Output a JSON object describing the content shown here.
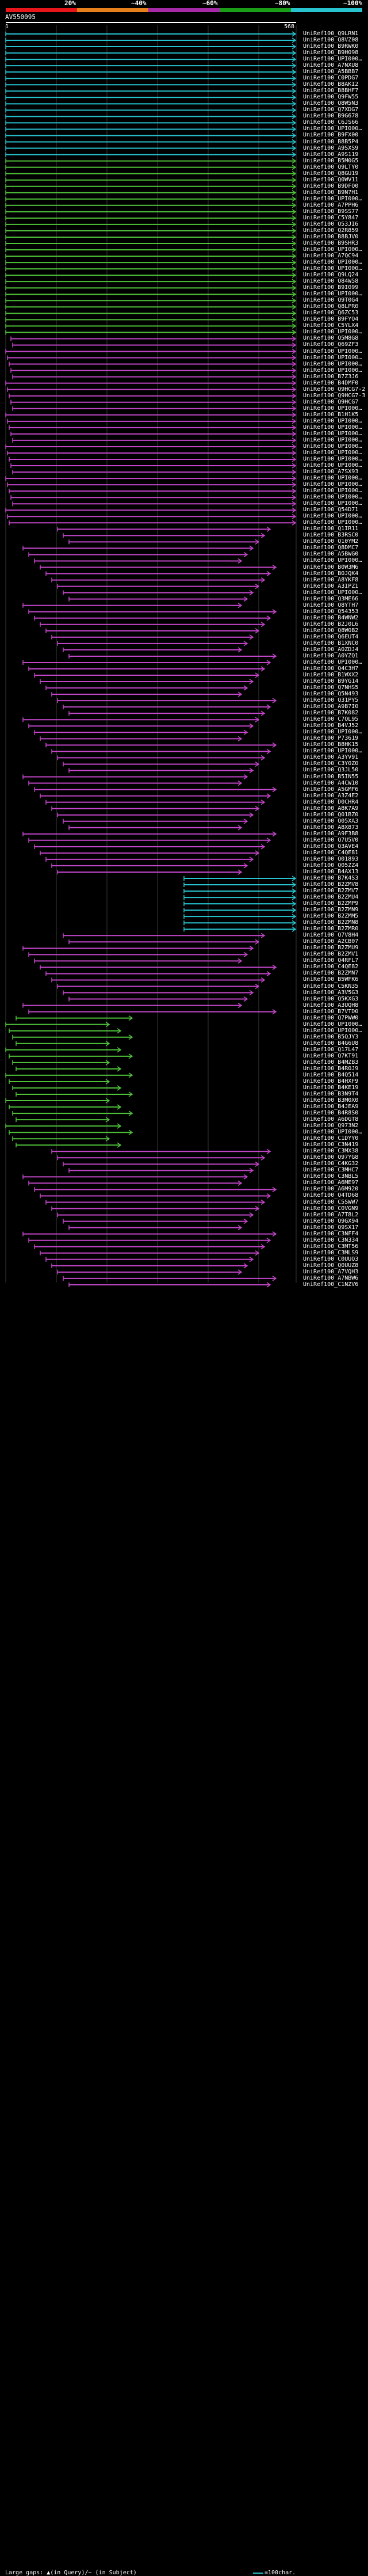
{
  "legend": {
    "labels": [
      "20%",
      "~40%",
      "~60%",
      "~80%",
      "~100%"
    ],
    "colors": [
      "#e8151b",
      "#e6801a",
      "#a629a8",
      "#1a9e18",
      "#27c4d0"
    ]
  },
  "query": {
    "title": "AV550095",
    "start": "1",
    "end": "568"
  },
  "colors": {
    "cyan": "#27c4d0",
    "green": "#4fc23a",
    "magenta": "#c346c9",
    "grid": "#3a3a3a"
  },
  "hits": [
    "UniRef100_Q9LRN1",
    "UniRef100_Q8VZ08",
    "UniRef100_B9RWK0",
    "UniRef100_B9H098",
    "UniRef100_UPI000…",
    "UniRef100_A7NXU8",
    "UniRef100_A5BBB7",
    "UniRef100_C0PDG7",
    "UniRef100_B8AKI2",
    "UniRef100_B8BHF7",
    "UniRef100_Q9FW55",
    "UniRef100_Q8W5N3",
    "UniRef100_Q7XDG7",
    "UniRef100_B9G678",
    "UniRef100_C6JS66",
    "UniRef100_UPI000…",
    "UniRef100_B9FX00",
    "UniRef100_B8B5P4",
    "UniRef100_A9SXS9",
    "UniRef100_A9S119",
    "UniRef100_B5M0G5",
    "UniRef100_Q9LTY0",
    "UniRef100_Q8GU19",
    "UniRef100_Q0WV11",
    "UniRef100_B9DFQ0",
    "UniRef100_B9N7H1",
    "UniRef100_UPI000…",
    "UniRef100_A7PPH6",
    "UniRef100_B9SS77",
    "UniRef100_C5Y847",
    "UniRef100_Q53JI6",
    "UniRef100_Q2R859",
    "UniRef100_B8BJV0",
    "UniRef100_B9SHR3",
    "UniRef100_UPI000…",
    "UniRef100_A7QC94",
    "UniRef100_UPI000…",
    "UniRef100_UPI000…",
    "UniRef100_Q9LQ24",
    "UniRef100_Q84W58",
    "UniRef100_B9I099",
    "UniRef100_UPI000…",
    "UniRef100_Q9T0G4",
    "UniRef100_Q8LPR0",
    "UniRef100_Q6ZC53",
    "UniRef100_B9FYQ4",
    "UniRef100_C5YLX4",
    "UniRef100_UPI000…",
    "UniRef100_Q5M8G8",
    "UniRef100_Q69ZF3",
    "UniRef100_UPI000…",
    "UniRef100_UPI000…",
    "UniRef100_UPI000…",
    "UniRef100_UPI000…",
    "UniRef100_B7Z3J6",
    "UniRef100_B4DMF0",
    "UniRef100_Q9HCG7-2",
    "UniRef100_Q9HCG7-3",
    "UniRef100_Q9HCG7",
    "UniRef100_UPI000…",
    "UniRef100_B1H1K5",
    "UniRef100_UPI000…",
    "UniRef100_UPI000…",
    "UniRef100_UPI000…",
    "UniRef100_UPI000…",
    "UniRef100_UPI000…",
    "UniRef100_UPI000…",
    "UniRef100_UPI000…",
    "UniRef100_UPI000…",
    "UniRef100_A7SX93",
    "UniRef100_UPI000…",
    "UniRef100_UPI000…",
    "UniRef100_UPI000…",
    "UniRef100_UPI000…",
    "UniRef100_UPI000…",
    "UniRef100_Q54D71",
    "UniRef100_UPI000…",
    "UniRef100_UPI000…",
    "UniRef100_Q1IR11",
    "UniRef100_B3RSC0",
    "UniRef100_Q10YM2",
    "UniRef100_Q8DMC7",
    "UniRef100_A5BWG0",
    "UniRef100_UPI000…",
    "UniRef100_B0W3M6",
    "UniRef100_B0JQK4",
    "UniRef100_A8YKF8",
    "UniRef100_A3IPZ1",
    "UniRef100_UPI000…",
    "UniRef100_Q3ME66",
    "UniRef100_Q8YTH7",
    "UniRef100_Q54353",
    "UniRef100_B4WNW2",
    "UniRef100_B2J0L6",
    "UniRef100_Q8W0B2",
    "UniRef100_Q6EUT4",
    "UniRef100_B1XNC0",
    "UniRef100_A0ZDJ4",
    "UniRef100_A0YZQ1",
    "UniRef100_UPI000…",
    "UniRef100_Q4C3H7",
    "UniRef100_B1WXX2",
    "UniRef100_B9YG14",
    "UniRef100_Q7NHS5",
    "UniRef100_Q5N493",
    "UniRef100_Q31PY5",
    "UniRef100_A9B7I0",
    "UniRef100_B7K082",
    "UniRef100_C7QL95",
    "UniRef100_B4VJ52",
    "UniRef100_UPI000…",
    "UniRef100_P73619",
    "UniRef100_B8HK15",
    "UniRef100_UPI000…",
    "UniRef100_A3YV91",
    "UniRef100_C3Y0Z0",
    "UniRef100_Q3JL50",
    "UniRef100_B5IN55",
    "UniRef100_A4CW10",
    "UniRef100_A5GMF6",
    "UniRef100_A3Z4E2",
    "UniRef100_D0CHR4",
    "UniRef100_A8K7A9",
    "UniRef100_Q01BZ0",
    "UniRef100_Q05XA3",
    "UniRef100_A8X873",
    "UniRef100_A9F3B8",
    "UniRef100_Q7U5V0",
    "UniRef100_Q3AVE4",
    "UniRef100_C4QE81",
    "UniRef100_Q01893",
    "UniRef100_Q05ZZ4",
    "UniRef100_B4AX13",
    "UniRef100_B7K4S3",
    "UniRef100_B2ZMV8",
    "UniRef100_B2ZMV7",
    "UniRef100_B2ZMU4",
    "UniRef100_B2ZMP9",
    "UniRef100_B2ZMN9",
    "UniRef100_B2ZMM5",
    "UniRef100_B2ZMN8",
    "UniRef100_B2ZMR0",
    "UniRef100_Q7V8H4",
    "UniRef100_A2CB07",
    "UniRef100_B2ZMU9",
    "UniRef100_B2ZMV1",
    "UniRef100_Q4RFL7",
    "UniRef100_C4QE82",
    "UniRef100_B2ZMN7",
    "UniRef100_B5WFK6",
    "UniRef100_C5KN35",
    "UniRef100_A3V5G3",
    "UniRef100_Q5KXG3",
    "UniRef100_A3UQH8",
    "UniRef100_B7VTD0",
    "UniRef100_Q7PWW0",
    "UniRef100_UPI000…",
    "UniRef100_UPI000…",
    "UniRef100_B5QJY3",
    "UniRef100_B4G6U8",
    "UniRef100_Q17L47",
    "UniRef100_Q7KT91",
    "UniRef100_B4MZB3",
    "UniRef100_B4R0J9",
    "UniRef100_B4Q514",
    "UniRef100_B4HXF9",
    "UniRef100_B4KE19",
    "UniRef100_B3N9T4",
    "UniRef100_B3M0X0",
    "UniRef100_B4JEA9",
    "UniRef100_B4R8S0",
    "UniRef100_A6DGT8",
    "UniRef100_Q973N2",
    "UniRef100_UPI000…",
    "UniRef100_C1DYY0",
    "UniRef100_C3N419",
    "UniRef100_C3MX38",
    "UniRef100_Q97YG8",
    "UniRef100_C4KG32",
    "UniRef100_C3MHC7",
    "UniRef100_C3NBL5",
    "UniRef100_A6ME97",
    "UniRef100_A6M920",
    "UniRef100_Q4TD68",
    "UniRef100_C5SWW7",
    "UniRef100_C0VGN9",
    "UniRef100_A7T8L2",
    "UniRef100_Q9GX94",
    "UniRef100_Q9SX17",
    "UniRef100_C3NFF4",
    "UniRef100_C3N334",
    "UniRef100_C3MT56",
    "UniRef100_C3MLS9",
    "UniRef100_C0UUQ3",
    "UniRef100_Q0UUZ8",
    "UniRef100_A7VQH3",
    "UniRef100_A7NBW6",
    "UniRef100_C1NZV6"
  ],
  "footer": {
    "gaps": "Large gaps: ▲(in Query)/~ (in Subject)",
    "scale": "=100char."
  }
}
